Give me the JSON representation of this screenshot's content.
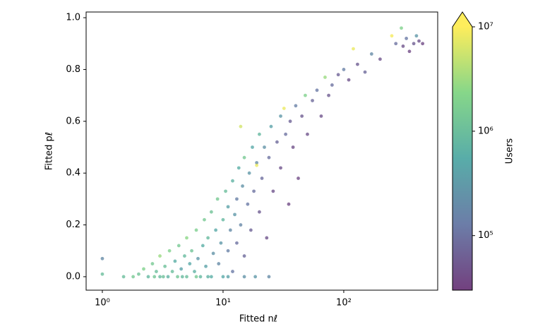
{
  "chart_data": {
    "type": "scatter",
    "xlabel": "Fitted nℓ",
    "ylabel": "Fitted pℓ",
    "colorbar_label": "Users",
    "xscale": "log",
    "colorscale": "log",
    "colormap": "viridis",
    "colorbar_extend": "max",
    "xlim": [
      0.734,
      600
    ],
    "ylim": [
      -0.052,
      1.022
    ],
    "clim": [
      30000,
      10000000
    ],
    "xticks": [
      {
        "value": 1,
        "label": "10⁰"
      },
      {
        "value": 10,
        "label": "10¹"
      },
      {
        "value": 100,
        "label": "10²"
      }
    ],
    "yticks": [
      {
        "value": 0,
        "label": "0.0"
      },
      {
        "value": 0.2,
        "label": "0.2"
      },
      {
        "value": 0.4,
        "label": "0.4"
      },
      {
        "value": 0.6,
        "label": "0.6"
      },
      {
        "value": 0.8,
        "label": "0.8"
      },
      {
        "value": 1,
        "label": "1.0"
      }
    ],
    "cticks": [
      {
        "value": 100000,
        "label": "10⁵"
      },
      {
        "value": 1000000,
        "label": "10⁶"
      },
      {
        "value": 10000000,
        "label": "10⁷"
      }
    ],
    "x": [
      1.0,
      1.0,
      1.5,
      1.8,
      2.0,
      2.2,
      2.4,
      2.6,
      2.8,
      3.0,
      3.0,
      3.3,
      3.5,
      3.6,
      3.8,
      4.0,
      4.2,
      4.3,
      4.5,
      4.8,
      5.0,
      5.0,
      5.3,
      5.5,
      5.8,
      6.0,
      6.2,
      6.5,
      6.8,
      7.0,
      7.2,
      7.5,
      8.0,
      8.0,
      8.3,
      8.7,
      9.0,
      9.2,
      9.6,
      10,
      10,
      10.5,
      11,
      11,
      11.5,
      12,
      12,
      12.5,
      13,
      13,
      13.5,
      14,
      14.5,
      15,
      15,
      16,
      16.5,
      17,
      17.5,
      18,
      18.5,
      19,
      20,
      20,
      21,
      22,
      23,
      24,
      24,
      25,
      26,
      28,
      30,
      30,
      32,
      33,
      35,
      36,
      38,
      40,
      42,
      45,
      48,
      50,
      55,
      60,
      65,
      70,
      75,
      80,
      90,
      100,
      110,
      120,
      130,
      150,
      170,
      200,
      250,
      270,
      300,
      310,
      330,
      350,
      380,
      400,
      420,
      450,
      14,
      19,
      6,
      3.2,
      4.6,
      2.7,
      7.5,
      11,
      15
    ],
    "y": [
      0.07,
      0.01,
      0.0,
      0.0,
      0.01,
      0.03,
      0.0,
      0.05,
      0.02,
      0.0,
      0.08,
      0.04,
      0.0,
      0.1,
      0.02,
      0.06,
      0.0,
      0.12,
      0.03,
      0.08,
      0.0,
      0.15,
      0.05,
      0.1,
      0.02,
      0.18,
      0.07,
      0.0,
      0.12,
      0.22,
      0.04,
      0.15,
      0.0,
      0.25,
      0.09,
      0.18,
      0.3,
      0.05,
      0.13,
      0.22,
      0.0,
      0.33,
      0.1,
      0.27,
      0.18,
      0.37,
      0.02,
      0.24,
      0.3,
      0.13,
      0.42,
      0.2,
      0.35,
      0.46,
      0.08,
      0.28,
      0.4,
      0.18,
      0.5,
      0.33,
      0.0,
      0.44,
      0.55,
      0.25,
      0.38,
      0.5,
      0.15,
      0.0,
      0.46,
      0.58,
      0.33,
      0.52,
      0.62,
      0.42,
      0.65,
      0.55,
      0.28,
      0.6,
      0.5,
      0.66,
      0.38,
      0.62,
      0.7,
      0.55,
      0.68,
      0.72,
      0.62,
      0.77,
      0.7,
      0.74,
      0.78,
      0.8,
      0.76,
      0.88,
      0.82,
      0.79,
      0.86,
      0.84,
      0.93,
      0.9,
      0.96,
      0.89,
      0.92,
      0.87,
      0.9,
      0.93,
      0.91,
      0.9,
      0.58,
      0.43,
      0.0,
      0.0,
      0.0,
      0.0,
      0.0,
      0.0,
      0.0
    ],
    "c": [
      200000,
      1000000,
      1000000,
      1500000,
      1200000,
      2000000,
      800000,
      1500000,
      1000000,
      900000,
      3000000,
      1100000,
      700000,
      2000000,
      1000000,
      600000,
      1300000,
      1500000,
      400000,
      900000,
      1000000,
      2500000,
      500000,
      1200000,
      700000,
      1800000,
      300000,
      800000,
      600000,
      1500000,
      400000,
      900000,
      600000,
      1200000,
      250000,
      500000,
      1500000,
      200000,
      300000,
      800000,
      500000,
      1000000,
      150000,
      400000,
      200000,
      700000,
      120000,
      300000,
      150000,
      100000,
      600000,
      180000,
      250000,
      1500000,
      80000,
      120000,
      300000,
      70000,
      500000,
      100000,
      300000,
      200000,
      800000,
      60000,
      90000,
      250000,
      50000,
      200000,
      100000,
      400000,
      50000,
      80000,
      300000,
      50000,
      8000000,
      100000,
      40000,
      70000,
      45000,
      150000,
      40000,
      60000,
      2000000,
      50000,
      80000,
      120000,
      50000,
      3000000,
      60000,
      100000,
      70000,
      150000,
      50000,
      8000000,
      60000,
      80000,
      200000,
      50000,
      9000000,
      100000,
      2000000,
      50000,
      120000,
      40000,
      60000,
      300000,
      50000,
      40000,
      6000000,
      8000000,
      1500000,
      1100000,
      900000,
      1300000,
      700000,
      400000,
      250000
    ]
  }
}
